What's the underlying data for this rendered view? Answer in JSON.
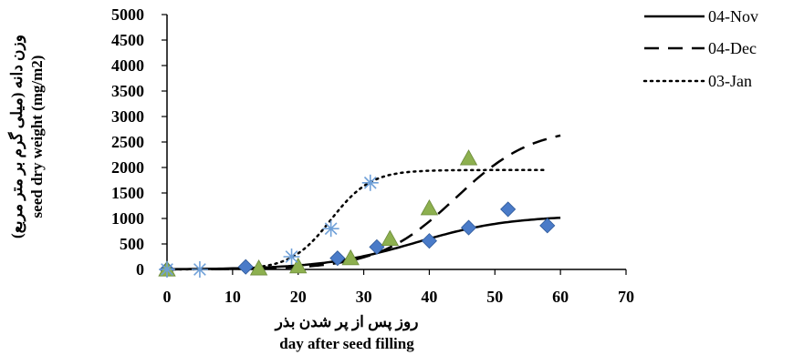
{
  "chart_data": {
    "type": "scatter",
    "title": "",
    "xlabel_fa": "روز پس از پر شدن بذر",
    "xlabel": "day after seed filling",
    "ylabel_fa": "وزن دانه (میلی گرم بر متر مربع)",
    "ylabel": "seed dry weight (mg/m2)",
    "xlim": [
      0,
      70
    ],
    "ylim": [
      0,
      5000
    ],
    "x_ticks": [
      "0",
      "10",
      "20",
      "30",
      "40",
      "50",
      "60",
      "70"
    ],
    "y_ticks": [
      "0",
      "500",
      "1000",
      "1500",
      "2000",
      "2500",
      "3000",
      "3500",
      "4000",
      "4500",
      "5000"
    ],
    "grid": false,
    "legend_position": "top-right",
    "series": [
      {
        "name": "04-Nov",
        "line_style": "solid",
        "marker": "diamond",
        "marker_color": "#4a7bc8",
        "points": [
          [
            0,
            0
          ],
          [
            12,
            50
          ],
          [
            26,
            220
          ],
          [
            32,
            440
          ],
          [
            40,
            560
          ],
          [
            46,
            820
          ],
          [
            52,
            1180
          ],
          [
            58,
            860
          ]
        ],
        "fit": {
          "asymptote": 1060,
          "midpoint": 38,
          "rate": 0.14,
          "x_start": 0,
          "x_end": 60
        }
      },
      {
        "name": "04-Dec",
        "line_style": "dashed",
        "marker": "triangle",
        "marker_color": "#8db04f",
        "points": [
          [
            0,
            0
          ],
          [
            14,
            20
          ],
          [
            20,
            60
          ],
          [
            28,
            220
          ],
          [
            34,
            600
          ],
          [
            40,
            1200
          ],
          [
            46,
            2180
          ]
        ],
        "fit": {
          "asymptote": 2800,
          "midpoint": 44,
          "rate": 0.17,
          "x_start": 0,
          "x_end": 60
        }
      },
      {
        "name": "03-Jan",
        "line_style": "dotted",
        "marker": "star",
        "marker_color": "#6fa0d8",
        "points": [
          [
            0,
            0
          ],
          [
            5,
            0
          ],
          [
            19,
            250
          ],
          [
            25,
            800
          ],
          [
            31,
            1700
          ]
        ],
        "fit": {
          "asymptote": 1950,
          "midpoint": 25,
          "rate": 0.33,
          "x_start": 0,
          "x_end": 58
        }
      }
    ]
  }
}
